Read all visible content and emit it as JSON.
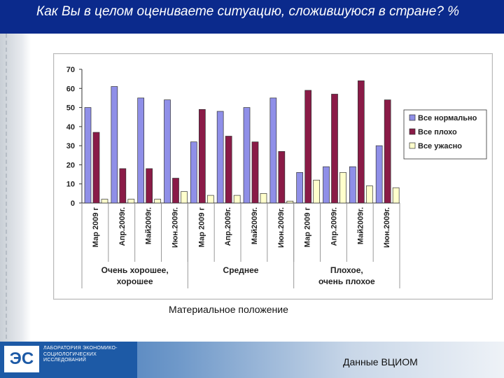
{
  "slide": {
    "title": "Как Вы в целом оцениваете ситуацию, сложившуюся в стране? %",
    "caption": "Материальное положение",
    "source": "Данные ВЦИОМ",
    "logo_mark": "ЭС",
    "logo_text": "ЛАБОРАТОРИЯ ЭКОНОМИКО-СОЦИОЛОГИЧЕСКИХ ИССЛЕДОВАНИЙ"
  },
  "colors": {
    "title_bar": "#0b2a8c",
    "series": [
      "#8f8fe8",
      "#8a1b47",
      "#ffffcc"
    ]
  },
  "chart_data": {
    "type": "bar",
    "categories": [
      "Мар 2009 г",
      "Апр.2009г.",
      "Май2009г.",
      "Июн.2009г.",
      "Мар 2009 г",
      "Апр.2009г.",
      "Май2009г.",
      "Июн.2009г.",
      "Мар 2009 г",
      "Апр.2009г.",
      "Май2009г.",
      "Июн.2009г."
    ],
    "groups": [
      {
        "label": "Очень хорошее, хорошее",
        "start": 0,
        "end": 3
      },
      {
        "label": "Среднее",
        "start": 4,
        "end": 7
      },
      {
        "label": "Плохое, очень плохое",
        "start": 8,
        "end": 11
      }
    ],
    "series": [
      {
        "name": "Все нормально",
        "values": [
          50,
          61,
          55,
          54,
          32,
          48,
          50,
          55,
          16,
          19,
          19,
          30
        ]
      },
      {
        "name": "Все плохо",
        "values": [
          37,
          18,
          18,
          13,
          49,
          35,
          32,
          27,
          59,
          57,
          64,
          54
        ]
      },
      {
        "name": "Все ужасно",
        "values": [
          2,
          2,
          2,
          6,
          4,
          4,
          5,
          1,
          12,
          16,
          9,
          8
        ]
      }
    ],
    "ylim": [
      0,
      70
    ],
    "yticks": [
      0,
      10,
      20,
      30,
      40,
      50,
      60,
      70
    ],
    "grid": false,
    "legend": "right"
  }
}
